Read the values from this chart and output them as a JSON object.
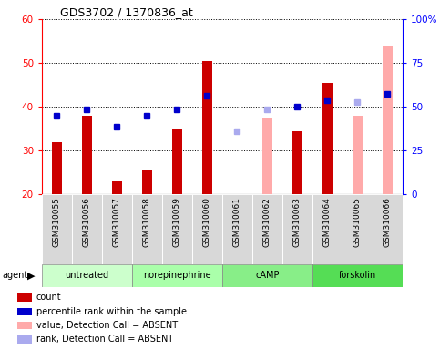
{
  "title": "GDS3702 / 1370836_at",
  "samples": [
    "GSM310055",
    "GSM310056",
    "GSM310057",
    "GSM310058",
    "GSM310059",
    "GSM310060",
    "GSM310061",
    "GSM310062",
    "GSM310063",
    "GSM310064",
    "GSM310065",
    "GSM310066"
  ],
  "red_bars": [
    32,
    38,
    23,
    25.5,
    35,
    50.5,
    20,
    null,
    34.5,
    45.5,
    null,
    null
  ],
  "pink_bars": [
    null,
    null,
    null,
    null,
    null,
    null,
    null,
    37.5,
    null,
    null,
    38,
    54
  ],
  "blue_squares": [
    38,
    39.5,
    35.5,
    38,
    39.5,
    42.5,
    null,
    null,
    40,
    41.5,
    null,
    43
  ],
  "light_blue_squares": [
    null,
    null,
    null,
    null,
    null,
    null,
    34.5,
    39.5,
    null,
    null,
    41,
    null
  ],
  "ymin": 20,
  "ymax": 60,
  "yticks_left": [
    20,
    30,
    40,
    50,
    60
  ],
  "yticks_right_vals": [
    0,
    25,
    50,
    75,
    100
  ],
  "agent_groups": [
    {
      "label": "untreated",
      "start": 0,
      "end": 3,
      "color": "#ccffcc"
    },
    {
      "label": "norepinephrine",
      "start": 3,
      "end": 6,
      "color": "#aaffaa"
    },
    {
      "label": "cAMP",
      "start": 6,
      "end": 9,
      "color": "#88ee88"
    },
    {
      "label": "forskolin",
      "start": 9,
      "end": 12,
      "color": "#55dd55"
    }
  ],
  "legend_colors": [
    "#cc0000",
    "#0000cc",
    "#ffaaaa",
    "#aaaaee"
  ],
  "legend_labels": [
    "count",
    "percentile rank within the sample",
    "value, Detection Call = ABSENT",
    "rank, Detection Call = ABSENT"
  ],
  "bar_width": 0.35,
  "bar_bottom": 20,
  "fig_width": 4.83,
  "fig_height": 3.84,
  "dpi": 100
}
